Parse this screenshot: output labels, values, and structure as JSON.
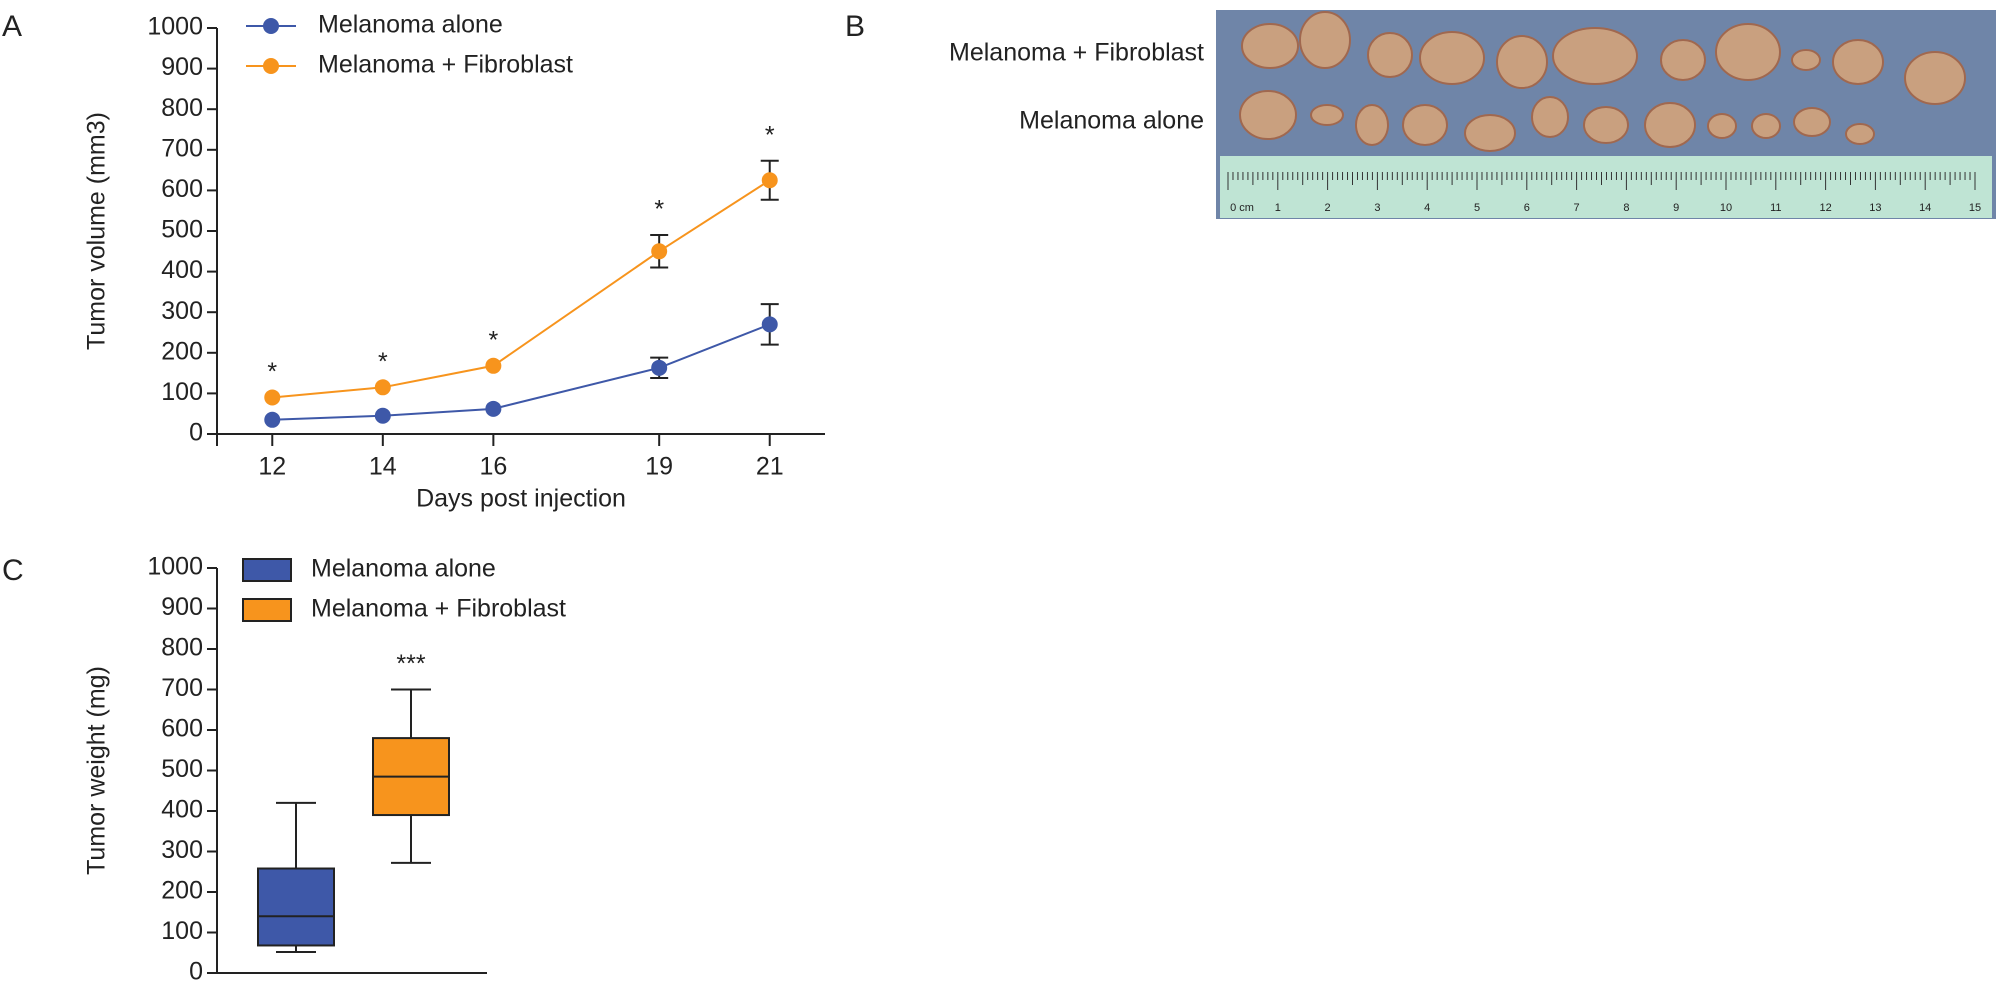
{
  "figure": {
    "panels": [
      "A",
      "B",
      "C"
    ]
  },
  "photo": {
    "labels": [
      "Melanoma + Fibroblast",
      "Melanoma alone"
    ],
    "ruler": [
      "0 cm",
      "1",
      "2",
      "3",
      "4",
      "5",
      "6",
      "7",
      "8",
      "9",
      "10",
      "11",
      "12",
      "13",
      "14",
      "15"
    ]
  },
  "chart_data": [
    {
      "type": "line",
      "x_label": "Days post injection",
      "y_label": "Tumor volume (mm3)",
      "x": [
        12,
        14,
        16,
        19,
        21
      ],
      "xlim": [
        11,
        22
      ],
      "xticks": [
        12,
        14,
        16,
        19,
        21
      ],
      "ylim": [
        0,
        1000
      ],
      "yticks": [
        0,
        100,
        200,
        300,
        400,
        500,
        600,
        700,
        800,
        900,
        1000
      ],
      "series": [
        {
          "name": "Melanoma alone",
          "color": "#3e58a8",
          "values": [
            35,
            45,
            62,
            163,
            270
          ],
          "errors": [
            null,
            null,
            null,
            25,
            50
          ]
        },
        {
          "name": "Melanoma + Fibroblast",
          "color": "#f7941d",
          "values": [
            90,
            115,
            168,
            450,
            625
          ],
          "errors": [
            null,
            null,
            null,
            40,
            48
          ]
        }
      ],
      "significance": [
        "*",
        "*",
        "*",
        "*",
        "*"
      ]
    },
    {
      "type": "box",
      "y_label": "Tumor weight (mg)",
      "ylim": [
        0,
        1000
      ],
      "yticks": [
        0,
        100,
        200,
        300,
        400,
        500,
        600,
        700,
        800,
        900,
        1000
      ],
      "series": [
        {
          "name": "Melanoma alone",
          "color": "#3e58a8",
          "min": 52,
          "q1": 68,
          "median": 140,
          "q3": 258,
          "max": 420
        },
        {
          "name": "Melanoma + Fibroblast",
          "color": "#f7941d",
          "min": 272,
          "q1": 390,
          "median": 485,
          "q3": 580,
          "max": 700
        }
      ],
      "significance": [
        null,
        "***"
      ]
    }
  ]
}
